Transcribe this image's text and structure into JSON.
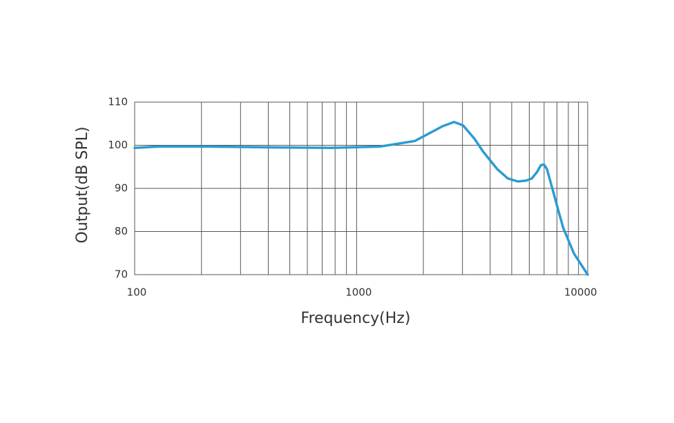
{
  "chart_data": {
    "type": "line",
    "x_label": "Frequency(Hz)",
    "y_label": "Output(dB SPL)",
    "x_scale": "log",
    "x": [
      100,
      129,
      212,
      435,
      770,
      1275,
      1830,
      2440,
      2750,
      3020,
      3400,
      3720,
      4300,
      4800,
      5330,
      5800,
      6160,
      6500,
      6770,
      7000,
      7210,
      7650,
      8100,
      8530,
      9540,
      11000
    ],
    "series": [
      {
        "name": "Output",
        "color": "#2b9bd3",
        "values": [
          99.4,
          99.7,
          99.7,
          99.5,
          99.4,
          99.7,
          101,
          104.4,
          105.4,
          104.6,
          101.5,
          98.5,
          94.5,
          92.3,
          91.6,
          91.8,
          92.3,
          93.8,
          95.4,
          95.5,
          94.5,
          89.7,
          85,
          80.9,
          74.9,
          70
        ]
      }
    ],
    "xlim": [
      100,
      11000
    ],
    "ylim": [
      70,
      110
    ],
    "xticks": [
      100,
      1000,
      10000
    ],
    "yticks": [
      70,
      80,
      90,
      100,
      110
    ],
    "xgrid": [
      200,
      300,
      400,
      500,
      600,
      700,
      800,
      900,
      1000,
      2000,
      3000,
      4000,
      5000,
      6000,
      7000,
      8000,
      9000,
      10000
    ],
    "grid": true
  }
}
